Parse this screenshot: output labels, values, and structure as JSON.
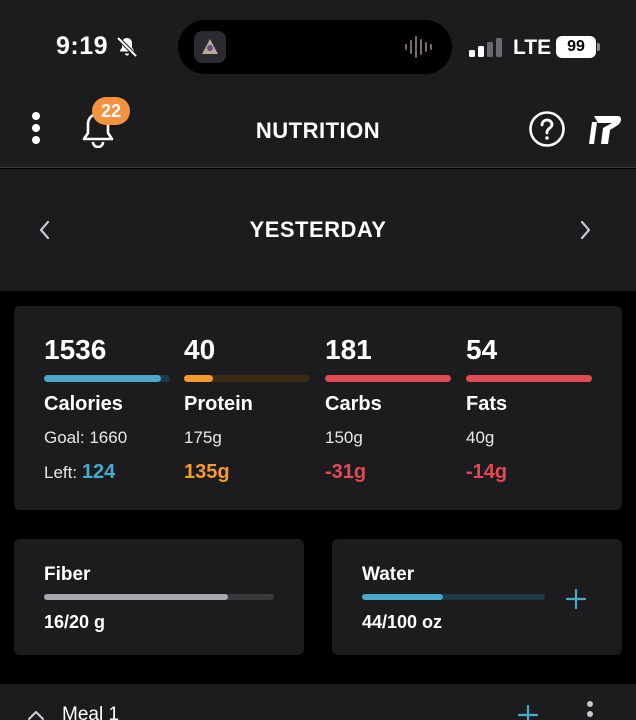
{
  "status_bar": {
    "time": "9:19",
    "network": "LTE",
    "battery": "99",
    "icons": [
      "bell-muted-icon",
      "signal-bars-icon",
      "battery-icon"
    ]
  },
  "header": {
    "title": "NUTRITION",
    "notification_count": "22",
    "icons": [
      "kebab-menu-icon",
      "bell-icon",
      "help-icon",
      "brand-logo-icon"
    ]
  },
  "date_nav": {
    "label": "YESTERDAY"
  },
  "macros": [
    {
      "value": "1536",
      "name": "Calories",
      "goal": "Goal: 1660",
      "left_label": "Left:",
      "left_value": "124",
      "progress": 0.925,
      "color": "#4aa8c9",
      "track": "#1f3a46",
      "left_color": "#4aa8c9"
    },
    {
      "value": "40",
      "name": "Protein",
      "goal": "175g",
      "left_label": "",
      "left_value": "135g",
      "progress": 0.229,
      "color": "#f59b2e",
      "track": "#3d2a12",
      "left_color": "#f59b2e"
    },
    {
      "value": "181",
      "name": "Carbs",
      "goal": "150g",
      "left_label": "",
      "left_value": "-31g",
      "progress": 1.0,
      "color": "#e04a55",
      "track": "#3d1a1e",
      "left_color": "#e04a55"
    },
    {
      "value": "54",
      "name": "Fats",
      "goal": "40g",
      "left_label": "",
      "left_value": "-14g",
      "progress": 1.0,
      "color": "#e04a55",
      "track": "#3d1a1e",
      "left_color": "#e04a55"
    }
  ],
  "fiber": {
    "title": "Fiber",
    "value": "16/20 g",
    "progress": 0.8,
    "color": "#a8a8ad"
  },
  "water": {
    "title": "Water",
    "value": "44/100 oz",
    "progress": 0.44,
    "color": "#4aa8c9"
  },
  "meal": {
    "label": "Meal 1"
  },
  "colors": {
    "surface": "#1c1c1e",
    "background": "#000000",
    "accent_blue": "#4aa8c9",
    "badge_orange": "#f5923e"
  }
}
